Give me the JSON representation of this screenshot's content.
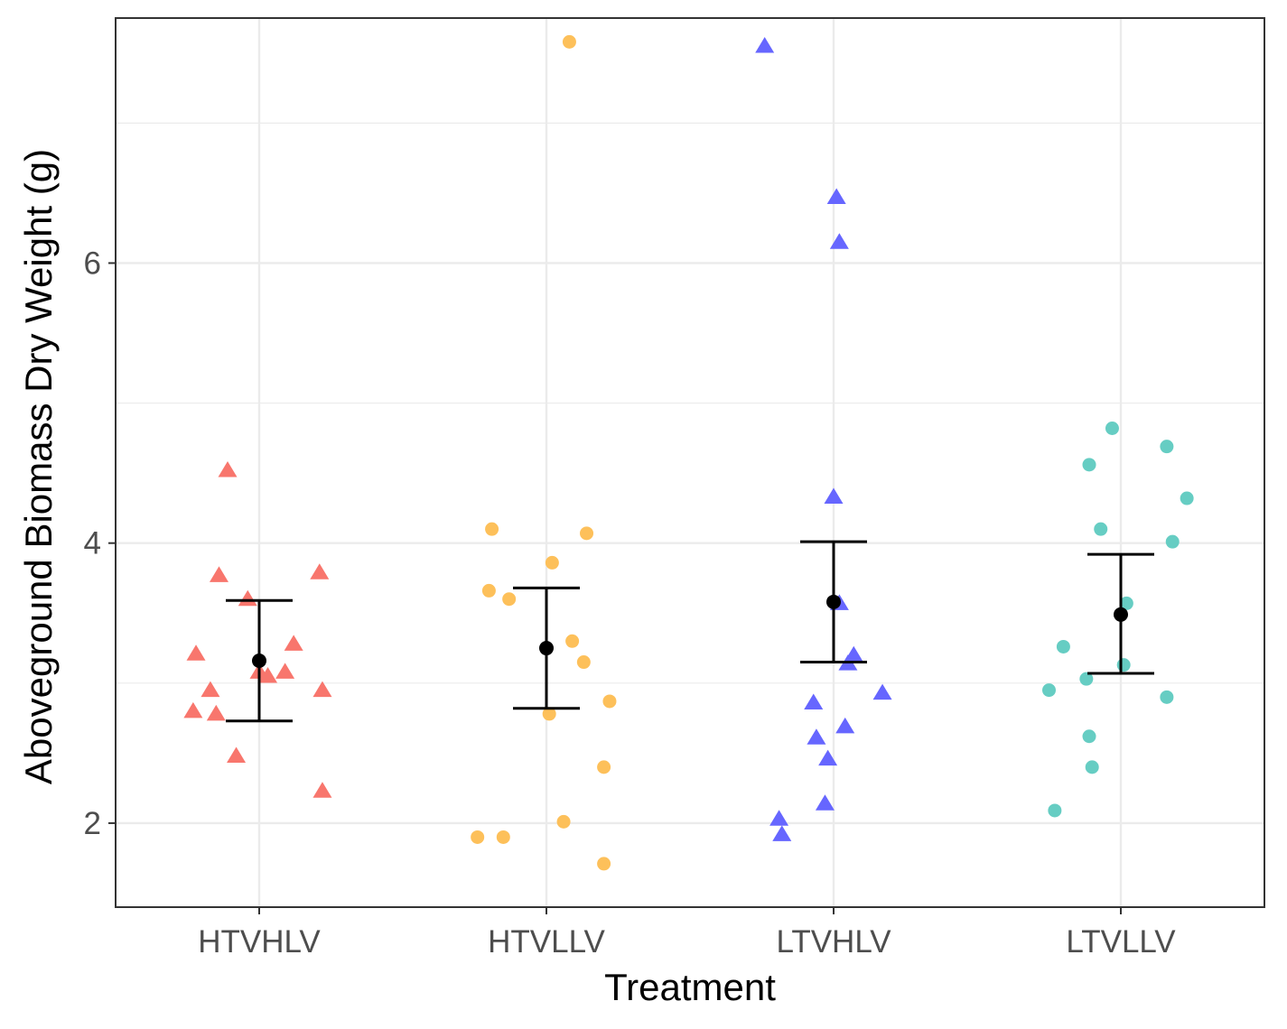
{
  "chart_data": {
    "type": "scatter",
    "xlabel": "Treatment",
    "ylabel": "Aboveground Biomass Dry Weight (g)",
    "categories": [
      "HTVHLV",
      "HTVLLV",
      "LTVHLV",
      "LTVLLV"
    ],
    "ylim": [
      1.4,
      7.75
    ],
    "yticks": [
      2,
      4,
      6
    ],
    "grid": true,
    "legend": "none",
    "series": [
      {
        "category": "HTVHLV",
        "shape": "triangle",
        "color": "#f8766d",
        "points": [
          {
            "x": -0.11,
            "y": 4.52
          },
          {
            "x": -0.14,
            "y": 3.77
          },
          {
            "x": -0.04,
            "y": 3.6
          },
          {
            "x": 0.21,
            "y": 3.79
          },
          {
            "x": 0.12,
            "y": 3.28
          },
          {
            "x": -0.22,
            "y": 3.21
          },
          {
            "x": -0.17,
            "y": 2.95
          },
          {
            "x": -0.23,
            "y": 2.8
          },
          {
            "x": -0.15,
            "y": 2.78
          },
          {
            "x": 0.0,
            "y": 3.08
          },
          {
            "x": 0.03,
            "y": 3.05
          },
          {
            "x": 0.09,
            "y": 3.08
          },
          {
            "x": 0.22,
            "y": 2.95
          },
          {
            "x": -0.08,
            "y": 2.48
          },
          {
            "x": 0.22,
            "y": 2.23
          }
        ],
        "mean": 3.16,
        "error": [
          2.73,
          3.59
        ]
      },
      {
        "category": "HTVLLV",
        "shape": "circle",
        "color": "#fdc05a",
        "points": [
          {
            "x": 0.08,
            "y": 7.58
          },
          {
            "x": -0.19,
            "y": 4.1
          },
          {
            "x": 0.14,
            "y": 4.07
          },
          {
            "x": 0.02,
            "y": 3.86
          },
          {
            "x": -0.2,
            "y": 3.66
          },
          {
            "x": -0.13,
            "y": 3.6
          },
          {
            "x": 0.09,
            "y": 3.3
          },
          {
            "x": 0.13,
            "y": 3.15
          },
          {
            "x": 0.22,
            "y": 2.87
          },
          {
            "x": 0.01,
            "y": 2.78
          },
          {
            "x": 0.2,
            "y": 2.4
          },
          {
            "x": 0.06,
            "y": 2.01
          },
          {
            "x": -0.24,
            "y": 1.9
          },
          {
            "x": -0.15,
            "y": 1.9
          },
          {
            "x": 0.2,
            "y": 1.71
          }
        ],
        "mean": 3.25,
        "error": [
          2.82,
          3.68
        ]
      },
      {
        "category": "LTVHLV",
        "shape": "triangle",
        "color": "#6666ff",
        "points": [
          {
            "x": -0.24,
            "y": 7.55
          },
          {
            "x": 0.01,
            "y": 6.47
          },
          {
            "x": 0.02,
            "y": 6.15
          },
          {
            "x": 0.0,
            "y": 4.33
          },
          {
            "x": 0.02,
            "y": 3.57
          },
          {
            "x": 0.07,
            "y": 3.2
          },
          {
            "x": 0.05,
            "y": 3.14
          },
          {
            "x": 0.17,
            "y": 2.93
          },
          {
            "x": -0.07,
            "y": 2.86
          },
          {
            "x": 0.04,
            "y": 2.69
          },
          {
            "x": -0.06,
            "y": 2.61
          },
          {
            "x": -0.02,
            "y": 2.46
          },
          {
            "x": -0.03,
            "y": 2.14
          },
          {
            "x": -0.19,
            "y": 2.03
          },
          {
            "x": -0.18,
            "y": 1.92
          }
        ],
        "mean": 3.58,
        "error": [
          3.15,
          4.01
        ]
      },
      {
        "category": "LTVLLV",
        "shape": "circle",
        "color": "#66cdc3",
        "points": [
          {
            "x": -0.03,
            "y": 4.82
          },
          {
            "x": 0.16,
            "y": 4.69
          },
          {
            "x": -0.11,
            "y": 4.56
          },
          {
            "x": 0.23,
            "y": 4.32
          },
          {
            "x": -0.07,
            "y": 4.1
          },
          {
            "x": 0.18,
            "y": 4.01
          },
          {
            "x": 0.02,
            "y": 3.57
          },
          {
            "x": -0.2,
            "y": 3.26
          },
          {
            "x": 0.01,
            "y": 3.13
          },
          {
            "x": -0.12,
            "y": 3.03
          },
          {
            "x": -0.25,
            "y": 2.95
          },
          {
            "x": 0.16,
            "y": 2.9
          },
          {
            "x": -0.11,
            "y": 2.62
          },
          {
            "x": -0.1,
            "y": 2.4
          },
          {
            "x": -0.23,
            "y": 2.09
          }
        ],
        "mean": 3.49,
        "error": [
          3.07,
          3.92
        ]
      }
    ]
  }
}
